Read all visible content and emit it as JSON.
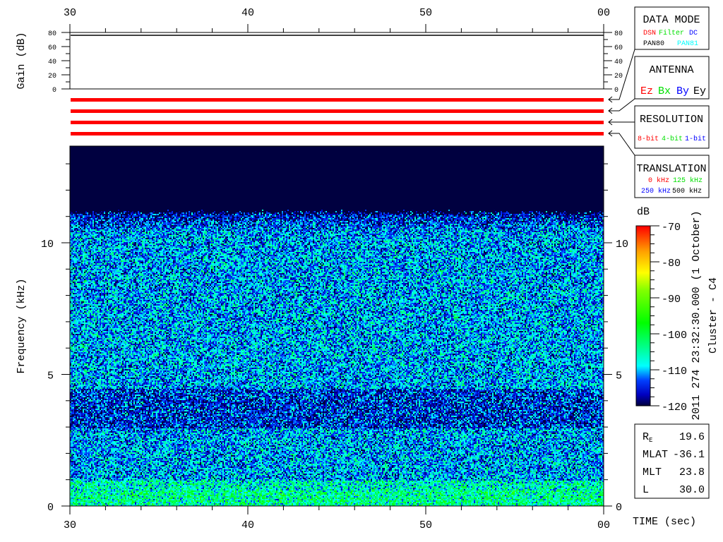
{
  "chart_data": {
    "type": "heatmap",
    "time_axis": {
      "ticks": [
        "30",
        "40",
        "50",
        "00"
      ],
      "label": "TIME (sec)",
      "range_sec": [
        30,
        60
      ],
      "minor_step_sec": 2
    },
    "gain_panel": {
      "ylabel": "Gain (dB)",
      "ticks": [
        "0",
        "20",
        "40",
        "60",
        "80"
      ],
      "ylim": [
        0,
        80
      ],
      "gain_value_db": 75
    },
    "frequency_axis": {
      "label": "Frequency (kHz)",
      "ticks": [
        "0",
        "5",
        "10"
      ],
      "ylim": [
        0,
        13.7
      ],
      "minor_step_khz": 1
    },
    "colorbar": {
      "label": "dB",
      "ticks": [
        "-70",
        "-80",
        "-90",
        "-100",
        "-110",
        "-120"
      ],
      "range": [
        -120,
        -70
      ]
    },
    "intensity_profile_db": [
      {
        "freq_khz": [
          0,
          1
        ],
        "mean": -106
      },
      {
        "freq_khz": [
          1,
          3
        ],
        "mean": -111
      },
      {
        "freq_khz": [
          3,
          4.5
        ],
        "mean": -115
      },
      {
        "freq_khz": [
          4.5,
          11
        ],
        "mean": -111
      },
      {
        "freq_khz": [
          11,
          13.7
        ],
        "mean": -120
      }
    ],
    "status_bars": {
      "count": 4,
      "color": "#ff0000"
    }
  },
  "legend": {
    "data_mode": {
      "title": "DATA MODE",
      "items": [
        {
          "text": "DSN",
          "color": "#ff0000"
        },
        {
          "text": "Filter",
          "color": "#00e000"
        },
        {
          "text": "DC",
          "color": "#0000ff"
        },
        {
          "text": "PAN80",
          "color": "#000000"
        },
        {
          "text": "PAN81",
          "color": "#00ffff"
        }
      ]
    },
    "antenna": {
      "title": "ANTENNA",
      "items": [
        {
          "text": "Ez",
          "color": "#ff0000"
        },
        {
          "text": "Bx",
          "color": "#00e000"
        },
        {
          "text": "By",
          "color": "#0000ff"
        },
        {
          "text": "Ey",
          "color": "#000000"
        }
      ]
    },
    "resolution": {
      "title": "RESOLUTION",
      "items": [
        {
          "text": "8-bit",
          "color": "#ff0000"
        },
        {
          "text": "4-bit",
          "color": "#00e000"
        },
        {
          "text": "1-bit",
          "color": "#0000ff"
        }
      ]
    },
    "translation": {
      "title": "TRANSLATION",
      "items": [
        {
          "text": "0 kHz",
          "color": "#ff0000"
        },
        {
          "text": "125 kHz",
          "color": "#00e000"
        },
        {
          "text": "250 kHz",
          "color": "#0000ff"
        },
        {
          "text": "500 kHz",
          "color": "#000000"
        }
      ]
    }
  },
  "timestamp": "2011 274 23:32:30.000 (1 October)",
  "spacecraft": "Cluster - C4",
  "orbit_info": [
    {
      "label": "R",
      "sub": "E",
      "value": "19.6"
    },
    {
      "label": "MLAT",
      "sub": "",
      "value": "-36.1"
    },
    {
      "label": "MLT",
      "sub": "",
      "value": "23.8"
    },
    {
      "label": "L",
      "sub": "",
      "value": "30.0"
    }
  ]
}
